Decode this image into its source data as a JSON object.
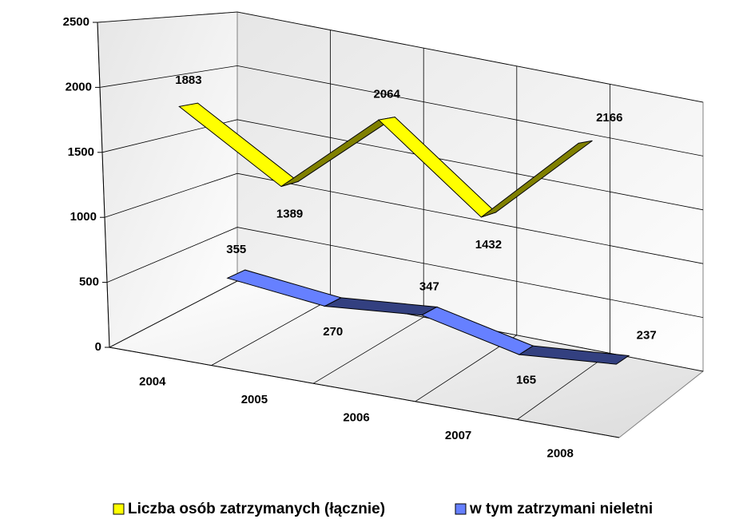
{
  "chart_data": {
    "type": "line3d",
    "categories": [
      "2004",
      "2005",
      "2006",
      "2007",
      "2008"
    ],
    "series": [
      {
        "name": "Liczba osób zatrzymanych (łącznie)",
        "color": "#ffff00",
        "values": [
          1883,
          1389,
          2064,
          1432,
          2166
        ]
      },
      {
        "name": "w tym zatrzymani nieletni",
        "color": "#6680ff",
        "values": [
          355,
          270,
          347,
          165,
          237
        ]
      }
    ],
    "ylim": [
      0,
      2500
    ],
    "yticks": [
      0,
      500,
      1000,
      1500,
      2000,
      2500
    ],
    "grid": true,
    "legend": "bottom"
  }
}
